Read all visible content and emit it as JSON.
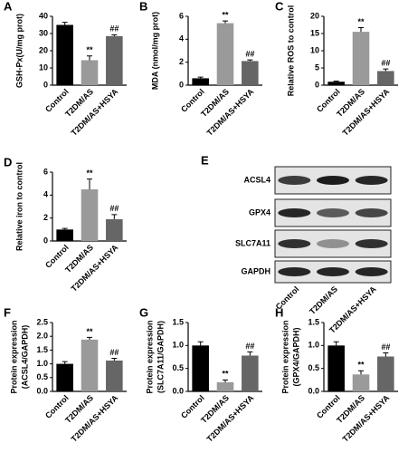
{
  "chart_data": [
    {
      "type": "bar",
      "panel_label": "A",
      "ylabel": [
        "GSH-Px(U/mg prot)"
      ],
      "categories": [
        "Control",
        "T2DM/AS",
        "T2DM/AS+HSYA"
      ],
      "values": [
        35,
        14.5,
        28.5
      ],
      "errors": [
        1.5,
        2.5,
        0.8
      ],
      "colors": [
        "#000000",
        "#9a9a9a",
        "#666666"
      ],
      "significance": [
        null,
        "**",
        "##"
      ],
      "ylim": [
        0,
        40
      ],
      "yticks": [
        0,
        10,
        20,
        30,
        40
      ]
    },
    {
      "type": "bar",
      "panel_label": "B",
      "ylabel": [
        "MDA (nmol/mg prot)"
      ],
      "categories": [
        "Control",
        "T2DM/AS",
        "T2DM/AS+HSYA"
      ],
      "values": [
        0.6,
        5.4,
        2.1
      ],
      "errors": [
        0.1,
        0.2,
        0.1
      ],
      "colors": [
        "#000000",
        "#9a9a9a",
        "#666666"
      ],
      "significance": [
        null,
        "**",
        "##"
      ],
      "ylim": [
        0,
        6
      ],
      "yticks": [
        0,
        2,
        4,
        6
      ]
    },
    {
      "type": "bar",
      "panel_label": "C",
      "ylabel": [
        "Relative ROS to control"
      ],
      "categories": [
        "Control",
        "T2DM/AS",
        "T2DM/AS+HSYA"
      ],
      "values": [
        1.0,
        15.5,
        4.1
      ],
      "errors": [
        0.2,
        1.2,
        0.6
      ],
      "colors": [
        "#000000",
        "#9a9a9a",
        "#666666"
      ],
      "significance": [
        null,
        "**",
        "##"
      ],
      "ylim": [
        0,
        20
      ],
      "yticks": [
        0,
        5,
        10,
        15,
        20
      ]
    },
    {
      "type": "bar",
      "panel_label": "D",
      "ylabel": [
        "Relative iron to control"
      ],
      "categories": [
        "Control",
        "T2DM/AS",
        "T2DM/AS+HSYA"
      ],
      "values": [
        1.0,
        4.5,
        1.9
      ],
      "errors": [
        0.1,
        0.9,
        0.4
      ],
      "colors": [
        "#000000",
        "#9a9a9a",
        "#666666"
      ],
      "significance": [
        null,
        "**",
        "##"
      ],
      "ylim": [
        0,
        6
      ],
      "yticks": [
        0,
        2,
        4,
        6
      ]
    },
    {
      "type": "bar",
      "panel_label": "F",
      "ylabel": [
        "Protein expression",
        "(ACSL4/GAPDH)"
      ],
      "categories": [
        "Control",
        "T2DM/AS",
        "T2DM/AS+HSYA"
      ],
      "values": [
        1.0,
        1.88,
        1.12
      ],
      "errors": [
        0.08,
        0.08,
        0.08
      ],
      "colors": [
        "#000000",
        "#9a9a9a",
        "#666666"
      ],
      "significance": [
        null,
        "**",
        "##"
      ],
      "ylim": [
        0,
        2.5
      ],
      "yticks": [
        {
          "value": 0,
          "label": "0.0"
        },
        0.5,
        {
          "value": 1,
          "label": "1.0"
        },
        1.5,
        {
          "value": 2,
          "label": "2.0"
        },
        2.5
      ]
    },
    {
      "type": "bar",
      "panel_label": "G",
      "ylabel": [
        "Protein expression",
        "(SLC7A11/GAPDH)"
      ],
      "categories": [
        "Control",
        "T2DM/AS",
        "T2DM/AS+HSYA"
      ],
      "values": [
        1.0,
        0.2,
        0.78
      ],
      "errors": [
        0.08,
        0.05,
        0.08
      ],
      "colors": [
        "#000000",
        "#9a9a9a",
        "#666666"
      ],
      "significance": [
        null,
        "**",
        "##"
      ],
      "ylim": [
        0,
        1.5
      ],
      "yticks": [
        {
          "value": 0,
          "label": "0.0"
        },
        0.5,
        {
          "value": 1,
          "label": "1.0"
        },
        1.5
      ]
    },
    {
      "type": "bar",
      "panel_label": "H",
      "ylabel": [
        "Protein expression",
        "(GPX4/GAPDH)"
      ],
      "categories": [
        "Control",
        "T2DM/AS",
        "T2DM/AS+HSYA"
      ],
      "values": [
        1.0,
        0.37,
        0.76
      ],
      "errors": [
        0.08,
        0.08,
        0.08
      ],
      "colors": [
        "#000000",
        "#9a9a9a",
        "#666666"
      ],
      "significance": [
        null,
        "**",
        "##"
      ],
      "ylim": [
        0,
        1.5
      ],
      "yticks": [
        {
          "value": 0,
          "label": "0.0"
        },
        0.5,
        {
          "value": 1,
          "label": "1.0"
        },
        1.5
      ]
    }
  ],
  "blot_panel": {
    "panel_label": "E",
    "proteins": [
      "ACSL4",
      "GPX4",
      "SLC7A11",
      "GAPDH"
    ],
    "lanes": [
      "Control",
      "T2DM/AS",
      "T2DM/AS+HSYA"
    ]
  }
}
